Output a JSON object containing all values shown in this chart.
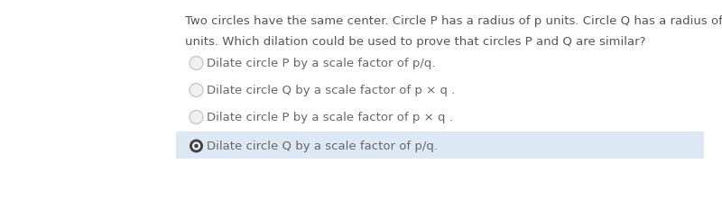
{
  "background_color": "#ffffff",
  "question_line1": "Two circles have the same center. Circle P has a radius of p units. Circle Q has a radius of q",
  "question_line2": "units. Which dilation could be used to prove that circles P and Q are similar?",
  "options": [
    {
      "text": "Dilate circle P by a scale factor of p/q.",
      "selected": false
    },
    {
      "text": "Dilate circle Q by a scale factor of p × q .",
      "selected": false
    },
    {
      "text": "Dilate circle P by a scale factor of p × q .",
      "selected": false
    },
    {
      "text": "Dilate circle Q by a scale factor of p/q.",
      "selected": true
    }
  ],
  "selected_bg_color": "#dce9f5",
  "radio_unselected_edge": "#c8c8c8",
  "radio_unselected_fill": "#f0f0f0",
  "radio_selected_outer": "#444444",
  "radio_selected_inner": "#ffffff",
  "radio_selected_dot": "#444444",
  "text_color": "#666666",
  "question_color": "#555555",
  "font_size": 9.5,
  "question_font_size": 9.5,
  "fig_width": 8.0,
  "fig_height": 2.22,
  "dpi": 100
}
